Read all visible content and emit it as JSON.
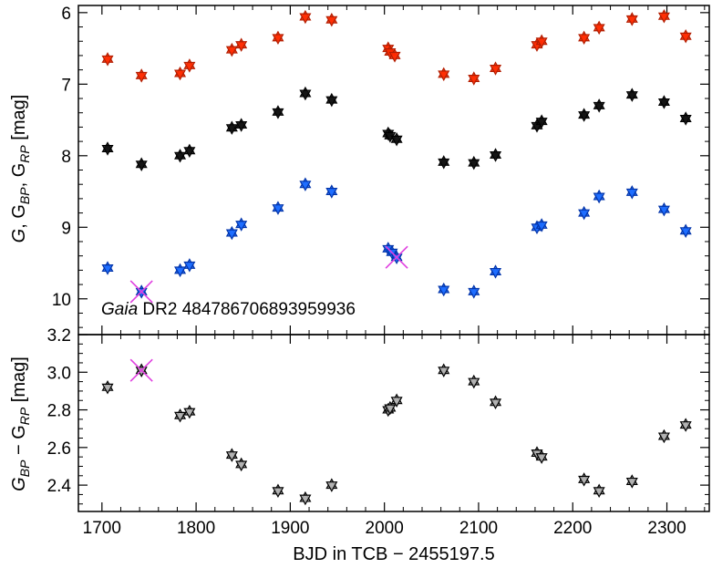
{
  "chart_data": [
    {
      "type": "scatter",
      "panel": "top",
      "annotation": {
        "italic": "Gaia",
        "rest": " DR2 484786706893959936"
      },
      "ylabel_parts": [
        "G",
        ", G",
        "BP",
        ", G",
        "RP",
        "  [mag]"
      ],
      "xlim": [
        1675,
        2345
      ],
      "ylim": [
        10.5,
        5.9
      ],
      "yticks": [
        6,
        7,
        8,
        9,
        10
      ],
      "inverted_y": true,
      "series": [
        {
          "name": "G_RP",
          "color": "#ff2a00",
          "edge": "#b31d00",
          "x": [
            1706,
            1742,
            1783,
            1793,
            1838,
            1848,
            1887,
            1916,
            1944,
            2004,
            2006,
            2011,
            2063,
            2095,
            2118,
            2162,
            2167,
            2212,
            2228,
            2263,
            2297,
            2320
          ],
          "y": [
            6.65,
            6.88,
            6.85,
            6.74,
            6.52,
            6.45,
            6.35,
            6.06,
            6.1,
            6.5,
            6.55,
            6.6,
            6.86,
            6.92,
            6.78,
            6.45,
            6.4,
            6.35,
            6.21,
            6.09,
            6.05,
            6.33
          ]
        },
        {
          "name": "G",
          "color": "#111111",
          "edge": "#000000",
          "x": [
            1706,
            1742,
            1783,
            1793,
            1838,
            1848,
            1887,
            1916,
            1944,
            2004,
            2006,
            2013,
            2063,
            2095,
            2118,
            2162,
            2167,
            2212,
            2228,
            2263,
            2297,
            2320
          ],
          "y": [
            7.9,
            8.12,
            8.0,
            7.93,
            7.61,
            7.57,
            7.39,
            7.13,
            7.22,
            7.69,
            7.72,
            7.77,
            8.09,
            8.1,
            7.99,
            7.58,
            7.52,
            7.43,
            7.3,
            7.15,
            7.25,
            7.48
          ]
        },
        {
          "name": "G_BP",
          "color": "#1a6bff",
          "edge": "#0033aa",
          "x": [
            1706,
            1742,
            1783,
            1793,
            1838,
            1848,
            1887,
            1916,
            1944,
            2004,
            2008,
            2013,
            2063,
            2095,
            2118,
            2162,
            2167,
            2212,
            2228,
            2263,
            2297,
            2320
          ],
          "y": [
            9.57,
            9.9,
            9.6,
            9.53,
            9.08,
            8.96,
            8.73,
            8.4,
            8.5,
            9.3,
            9.35,
            9.42,
            9.87,
            9.9,
            9.62,
            9.0,
            8.97,
            8.8,
            8.57,
            8.51,
            8.75,
            9.05
          ]
        }
      ],
      "rejected": [
        {
          "x": 1742,
          "y": 9.9
        },
        {
          "x": 2013,
          "y": 9.42
        }
      ]
    },
    {
      "type": "scatter",
      "panel": "bottom",
      "xlabel": "BJD in TCB − 2455197.5",
      "ylabel_parts": [
        "G",
        "BP",
        " − G",
        "RP",
        "  [mag]"
      ],
      "xlim": [
        1675,
        2345
      ],
      "ylim": [
        2.26,
        3.2
      ],
      "yticks": [
        2.4,
        2.6,
        2.8,
        3.0,
        3.2
      ],
      "xticks": [
        1700,
        1800,
        1900,
        2000,
        2100,
        2200,
        2300
      ],
      "color": "#b0b0b0",
      "x": [
        1706,
        1742,
        1783,
        1793,
        1838,
        1848,
        1887,
        1916,
        1944,
        2004,
        2006,
        2013,
        2063,
        2095,
        2118,
        2162,
        2167,
        2212,
        2228,
        2263,
        2297,
        2320
      ],
      "y": [
        2.92,
        3.01,
        2.77,
        2.79,
        2.56,
        2.51,
        2.37,
        2.33,
        2.4,
        2.8,
        2.81,
        2.85,
        3.01,
        2.95,
        2.84,
        2.57,
        2.55,
        2.43,
        2.37,
        2.42,
        2.66,
        2.72
      ],
      "rejected": [
        {
          "x": 1742,
          "y": 3.01
        }
      ]
    }
  ]
}
